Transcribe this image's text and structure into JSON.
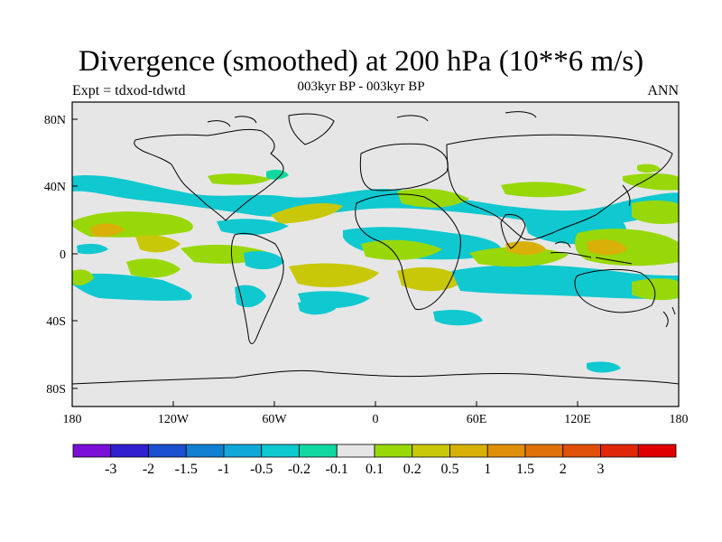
{
  "title": "Divergence (smoothed) at 200 hPa (10**6 m/s)",
  "subtitle": "003kyr BP - 003kyr BP",
  "left_label": "Expt = tdxod-tdwtd",
  "right_label": "ANN",
  "lat_labels": [
    "80N",
    "40N",
    "0",
    "40S",
    "80S"
  ],
  "lon_labels": [
    "180",
    "120W",
    "60W",
    "0",
    "60E",
    "120E",
    "180"
  ],
  "colorbar": {
    "colors": [
      "#7a10d8",
      "#3020d0",
      "#1a50d0",
      "#1080d0",
      "#10a8d8",
      "#10c8d0",
      "#10d8a0",
      "#e6e6e6",
      "#98d808",
      "#c8c808",
      "#d8b008",
      "#e09008",
      "#e07008",
      "#e05008",
      "#e02808",
      "#e00000"
    ],
    "labels": [
      "-3",
      "-2",
      "-1.5",
      "-1",
      "-0.5",
      "-0.2",
      "-0.1",
      "0.1",
      "0.2",
      "0.5",
      "1",
      "1.5",
      "2",
      "3"
    ]
  },
  "colors": {
    "background_field": "#e6e6e6",
    "cyan": "#10c8d0",
    "teal": "#10d8a0",
    "green": "#98d808",
    "yellow": "#c8c808",
    "orange": "#d8b008",
    "blue": "#10a8d8"
  }
}
